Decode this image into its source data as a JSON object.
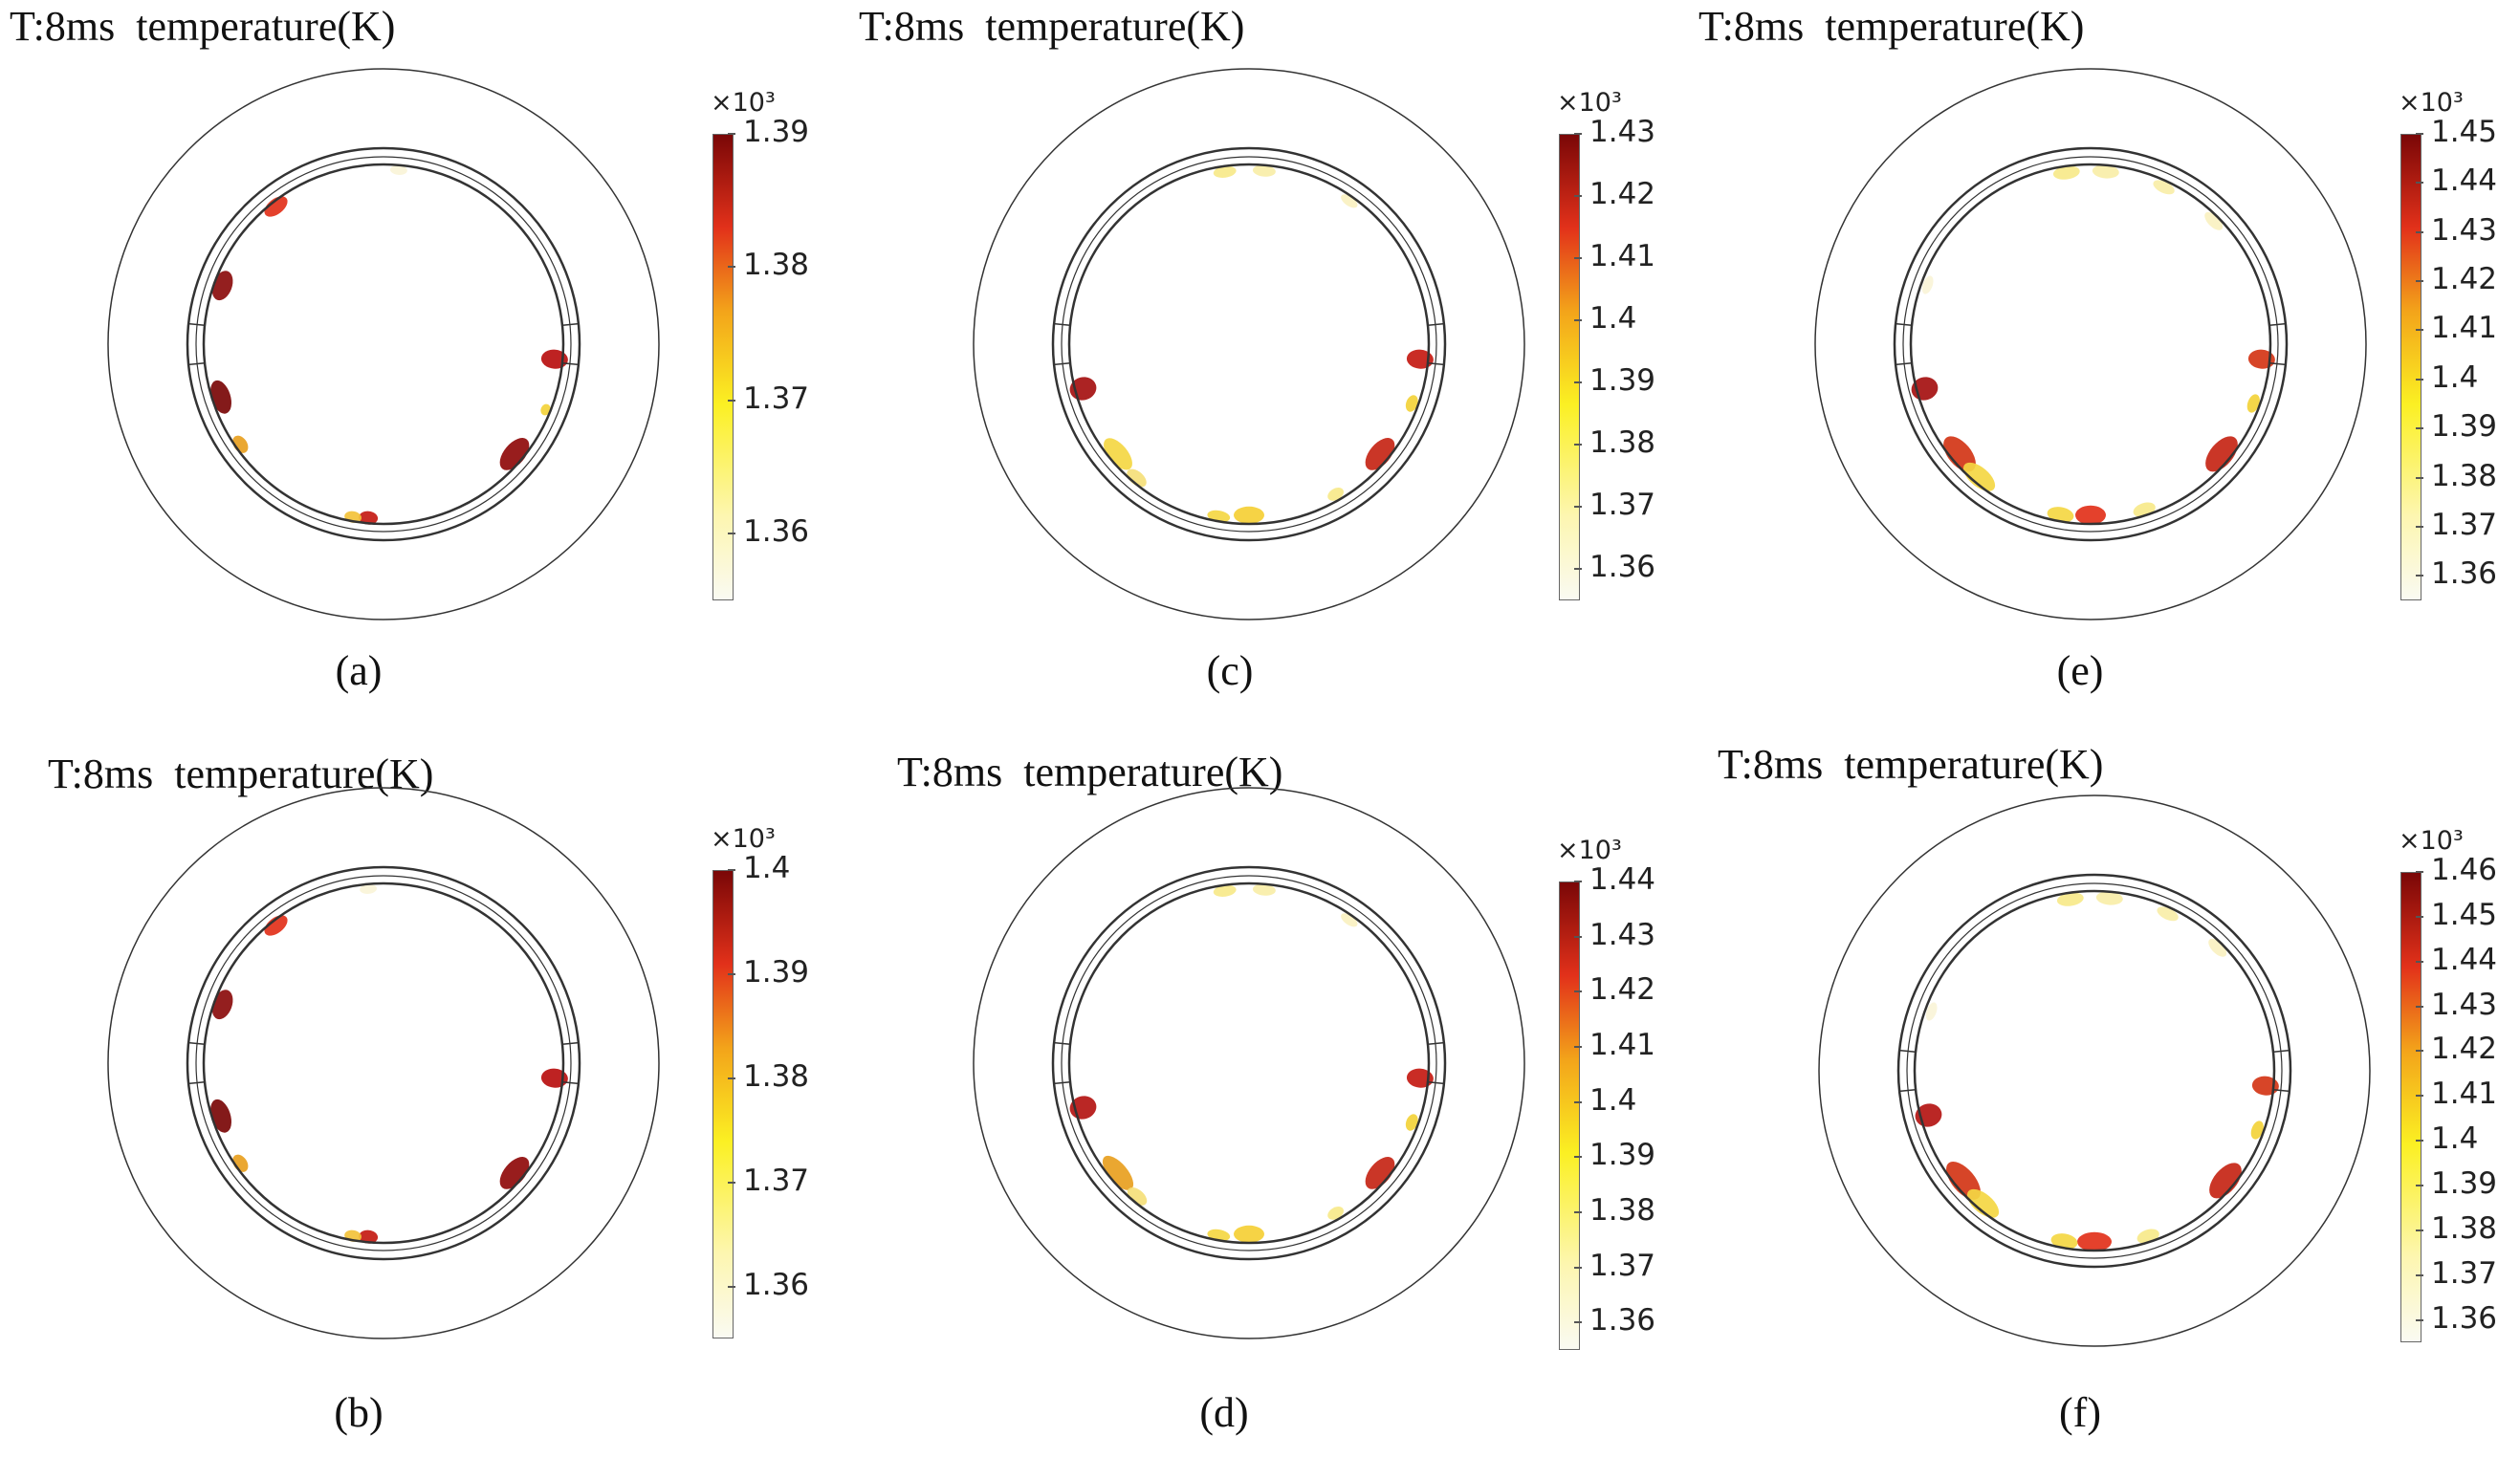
{
  "figure": {
    "panels": [
      {
        "id": "a",
        "title": "T:8ms  temperature(K)",
        "caption": "(a)",
        "colorbar": {
          "multiplier": "×10³",
          "ticks": [
            "1.39",
            "1.38",
            "1.37",
            "1.36"
          ],
          "min": 1.355,
          "max": 1.39
        }
      },
      {
        "id": "c",
        "title": "T:8ms  temperature(K)",
        "caption": "(c)",
        "colorbar": {
          "multiplier": "×10³",
          "ticks": [
            "1.43",
            "1.42",
            "1.41",
            "1.4",
            "1.39",
            "1.38",
            "1.37",
            "1.36"
          ],
          "min": 1.355,
          "max": 1.43
        }
      },
      {
        "id": "e",
        "title": "T:8ms  temperature(K)",
        "caption": "(e)",
        "colorbar": {
          "multiplier": "×10³",
          "ticks": [
            "1.45",
            "1.44",
            "1.43",
            "1.42",
            "1.41",
            "1.4",
            "1.39",
            "1.38",
            "1.37",
            "1.36"
          ],
          "min": 1.355,
          "max": 1.45
        }
      },
      {
        "id": "b",
        "title": "T:8ms  temperature(K)",
        "caption": "(b)",
        "colorbar": {
          "multiplier": "×10³",
          "ticks": [
            "1.4",
            "1.39",
            "1.38",
            "1.37",
            "1.36"
          ],
          "min": 1.355,
          "max": 1.4
        }
      },
      {
        "id": "d",
        "title": "T:8ms  temperature(K)",
        "caption": "(d)",
        "colorbar": {
          "multiplier": "×10³",
          "ticks": [
            "1.44",
            "1.43",
            "1.42",
            "1.41",
            "1.4",
            "1.39",
            "1.38",
            "1.37",
            "1.36"
          ],
          "min": 1.355,
          "max": 1.44
        }
      },
      {
        "id": "f",
        "title": "T:8ms  temperature(K)",
        "caption": "(f)",
        "colorbar": {
          "multiplier": "×10³",
          "ticks": [
            "1.46",
            "1.45",
            "1.44",
            "1.43",
            "1.42",
            "1.41",
            "1.4",
            "1.39",
            "1.38",
            "1.37",
            "1.36"
          ],
          "min": 1.355,
          "max": 1.46
        }
      }
    ]
  }
}
